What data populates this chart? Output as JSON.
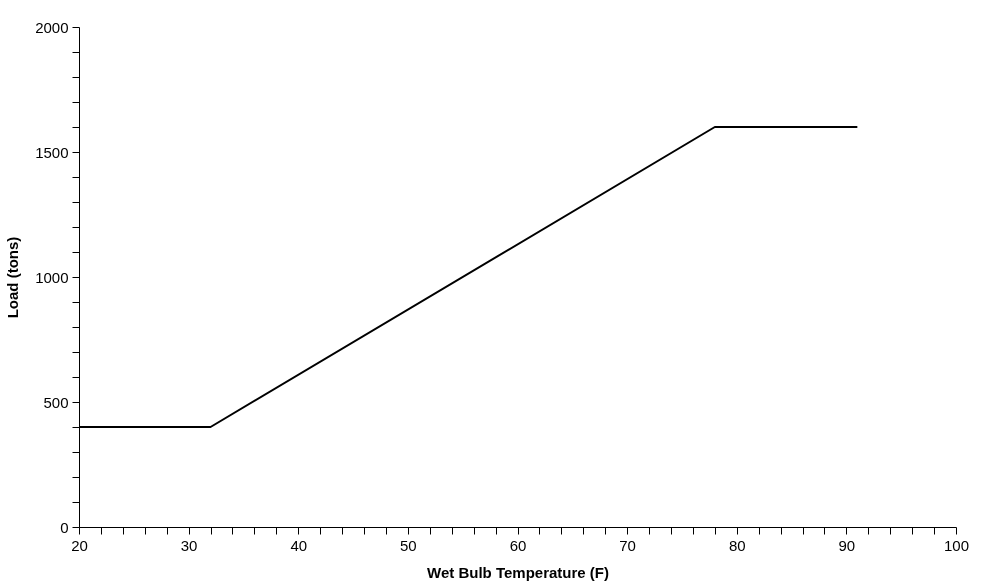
{
  "chart_data": {
    "type": "line",
    "xlabel": "Wet Bulb Temperature (F)",
    "ylabel": "Load (tons)",
    "x": [
      20,
      32,
      78,
      91
    ],
    "series": [
      {
        "color": "#000000",
        "values": [
          400,
          400,
          1600,
          1600
        ]
      }
    ],
    "xlim": [
      20,
      100
    ],
    "ylim": [
      0,
      2000
    ],
    "xticks": [
      20,
      {
        "value": 22,
        "label": null
      },
      {
        "value": 24,
        "label": null
      },
      {
        "value": 26,
        "label": null
      },
      {
        "value": 28,
        "label": null
      },
      30,
      {
        "value": 32,
        "label": null
      },
      {
        "value": 34,
        "label": null
      },
      {
        "value": 36,
        "label": null
      },
      {
        "value": 38,
        "label": null
      },
      40,
      {
        "value": 42,
        "label": null
      },
      {
        "value": 44,
        "label": null
      },
      {
        "value": 46,
        "label": null
      },
      {
        "value": 48,
        "label": null
      },
      50,
      {
        "value": 52,
        "label": null
      },
      {
        "value": 54,
        "label": null
      },
      {
        "value": 56,
        "label": null
      },
      {
        "value": 58,
        "label": null
      },
      60,
      {
        "value": 62,
        "label": null
      },
      {
        "value": 64,
        "label": null
      },
      {
        "value": 66,
        "label": null
      },
      {
        "value": 68,
        "label": null
      },
      70,
      {
        "value": 72,
        "label": null
      },
      {
        "value": 74,
        "label": null
      },
      {
        "value": 76,
        "label": null
      },
      {
        "value": 78,
        "label": null
      },
      80,
      {
        "value": 82,
        "label": null
      },
      {
        "value": 84,
        "label": null
      },
      {
        "value": 86,
        "label": null
      },
      {
        "value": 88,
        "label": null
      },
      90,
      {
        "value": 92,
        "label": null
      },
      {
        "value": 94,
        "label": null
      },
      {
        "value": 96,
        "label": null
      },
      {
        "value": 98,
        "label": null
      },
      100
    ],
    "yticks": [
      0,
      {
        "value": 100,
        "label": null
      },
      {
        "value": 200,
        "label": null
      },
      {
        "value": 300,
        "label": null
      },
      {
        "value": 400,
        "label": null
      },
      500,
      {
        "value": 600,
        "label": null
      },
      {
        "value": 700,
        "label": null
      },
      {
        "value": 800,
        "label": null
      },
      {
        "value": 900,
        "label": null
      },
      1000,
      {
        "value": 1100,
        "label": null
      },
      {
        "value": 1200,
        "label": null
      },
      {
        "value": 1300,
        "label": null
      },
      {
        "value": 1400,
        "label": null
      },
      1500,
      {
        "value": 1600,
        "label": null
      },
      {
        "value": 1700,
        "label": null
      },
      {
        "value": 1800,
        "label": null
      },
      {
        "value": 1900,
        "label": null
      },
      2000
    ],
    "grid": false,
    "marker": "none",
    "line_style": "solid"
  }
}
